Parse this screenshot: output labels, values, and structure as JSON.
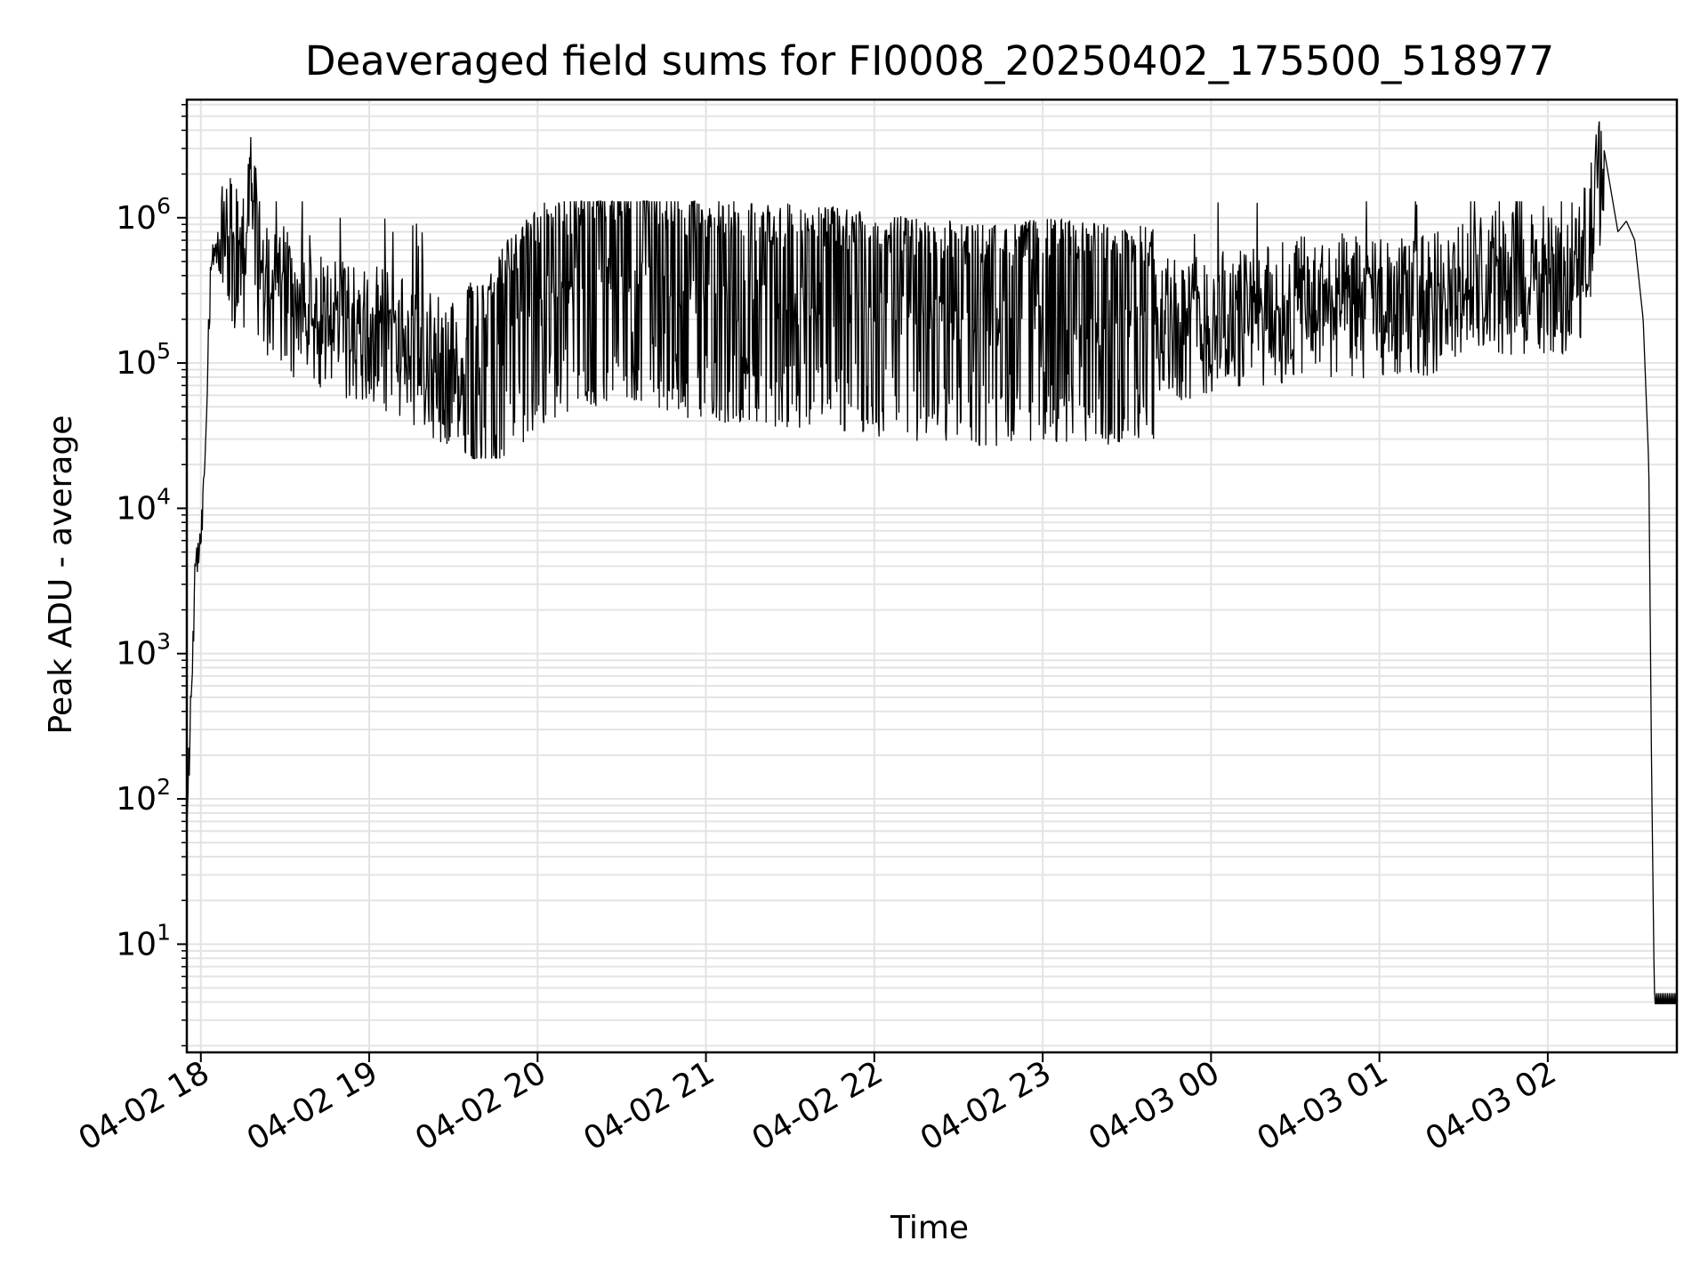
{
  "chart_data": {
    "type": "line",
    "title": "Deaveraged field sums for FI0008_20250402_175500_518977",
    "xlabel": "Time",
    "ylabel": "Peak ADU - average",
    "yscale": "log",
    "grid": true,
    "line_color": "#000000",
    "grid_color": "#e3e3e3",
    "xlim": [
      "2025-04-02 17:55",
      "2025-04-03 02:46"
    ],
    "ylim": [
      1.8,
      6500000
    ],
    "x_ticks": [
      {
        "value": "2025-04-02 18:00",
        "label": "04-02 18"
      },
      {
        "value": "2025-04-02 19:00",
        "label": "04-02 19"
      },
      {
        "value": "2025-04-02 20:00",
        "label": "04-02 20"
      },
      {
        "value": "2025-04-02 21:00",
        "label": "04-02 21"
      },
      {
        "value": "2025-04-02 22:00",
        "label": "04-02 22"
      },
      {
        "value": "2025-04-02 23:00",
        "label": "04-02 23"
      },
      {
        "value": "2025-04-03 00:00",
        "label": "04-03 00"
      },
      {
        "value": "2025-04-03 01:00",
        "label": "04-03 01"
      },
      {
        "value": "2025-04-03 02:00",
        "label": "04-03 02"
      }
    ],
    "y_ticks": [
      {
        "value": 10,
        "base": "10",
        "exp": "1"
      },
      {
        "value": 100,
        "base": "10",
        "exp": "2"
      },
      {
        "value": 1000,
        "base": "10",
        "exp": "3"
      },
      {
        "value": 10000,
        "base": "10",
        "exp": "4"
      },
      {
        "value": 100000,
        "base": "10",
        "exp": "5"
      },
      {
        "value": 1000000,
        "base": "10",
        "exp": "6"
      }
    ],
    "series": [
      {
        "values_note": "Minute-resolution samples",
        "x": [
          "2025-04-02 17:55",
          "2025-04-02 17:56",
          "2025-04-02 17:57",
          "2025-04-02 17:58",
          "2025-04-02 17:59",
          "2025-04-02 18:00",
          "2025-04-02 18:01",
          "2025-04-02 18:02",
          "2025-04-02 18:03",
          "2025-04-02 18:04",
          "2025-04-02 18:05",
          "2025-04-02 18:06",
          "2025-04-02 18:07",
          "2025-04-02 18:08",
          "2025-04-02 18:10",
          "2025-04-02 18:12",
          "2025-04-02 18:14",
          "2025-04-02 18:16",
          "2025-04-02 18:18",
          "2025-04-02 18:20",
          "2025-04-02 18:22",
          "2025-04-02 18:25",
          "2025-04-02 18:27",
          "2025-04-02 18:30",
          "2025-04-02 18:35",
          "2025-04-02 18:40",
          "2025-04-02 18:45",
          "2025-04-02 18:50",
          "2025-04-02 18:55",
          "2025-04-02 19:00",
          "2025-04-02 19:10",
          "2025-04-02 19:20",
          "2025-04-02 19:30",
          "2025-04-02 19:40",
          "2025-04-02 19:50",
          "2025-04-02 20:00",
          "2025-04-02 20:10",
          "2025-04-02 20:20",
          "2025-04-02 20:30",
          "2025-04-02 20:40",
          "2025-04-02 20:50",
          "2025-04-02 21:00",
          "2025-04-02 21:15",
          "2025-04-02 21:30",
          "2025-04-02 21:45",
          "2025-04-02 22:00",
          "2025-04-02 22:15",
          "2025-04-02 22:30",
          "2025-04-02 22:45",
          "2025-04-02 23:00",
          "2025-04-02 23:15",
          "2025-04-02 23:30",
          "2025-04-02 23:45",
          "2025-04-03 00:00",
          "2025-04-03 00:15",
          "2025-04-03 00:30",
          "2025-04-03 00:45",
          "2025-04-03 01:00",
          "2025-04-03 01:15",
          "2025-04-03 01:30",
          "2025-04-03 01:45",
          "2025-04-03 02:00",
          "2025-04-03 02:10",
          "2025-04-03 02:15",
          "2025-04-03 02:20",
          "2025-04-03 02:25",
          "2025-04-03 02:28",
          "2025-04-03 02:31",
          "2025-04-03 02:34",
          "2025-04-03 02:36",
          "2025-04-03 02:37",
          "2025-04-03 02:38",
          "2025-04-03 02:40",
          "2025-04-03 02:46"
        ],
        "values": [
          80,
          220,
          900,
          3500,
          5000,
          6000,
          13000,
          60000,
          250000,
          500000,
          600000,
          550000,
          500000,
          600000,
          650000,
          550000,
          450000,
          500000,
          3300000,
          500000,
          400000,
          300000,
          250000,
          300000,
          220000,
          200000,
          200000,
          180000,
          160000,
          150000,
          140000,
          100000,
          80000,
          70000,
          150000,
          250000,
          300000,
          350000,
          400000,
          350000,
          300000,
          280000,
          260000,
          250000,
          240000,
          220000,
          200000,
          190000,
          180000,
          200000,
          190000,
          180000,
          170000,
          180000,
          200000,
          230000,
          250000,
          230000,
          250000,
          300000,
          350000,
          330000,
          380000,
          700000,
          3000000,
          800000,
          950000,
          700000,
          200000,
          20000,
          150,
          4,
          4,
          4
        ]
      }
    ]
  }
}
